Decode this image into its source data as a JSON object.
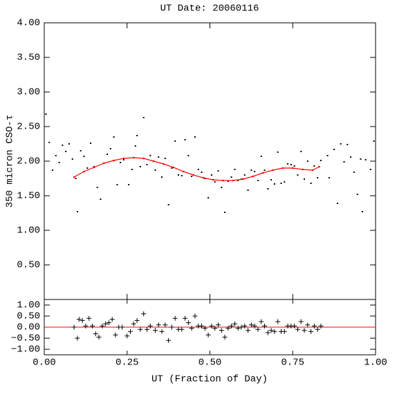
{
  "chart_data": [
    {
      "type": "scatter",
      "title": "UT Date: 20060116",
      "ylabel": "350 micron CSO-τ",
      "xlim": [
        0,
        1
      ],
      "xticks": [
        0,
        0.25,
        0.5,
        0.75,
        1
      ],
      "ylim": [
        0,
        4
      ],
      "yticks": [
        {
          "value": 0.5,
          "label": "0.50"
        },
        {
          "value": 1,
          "label": "1.00"
        },
        {
          "value": 1.5,
          "label": "1.50"
        },
        {
          "value": 2,
          "label": "2.00"
        },
        {
          "value": 2.5,
          "label": "2.50"
        },
        {
          "value": 3,
          "label": "3.00"
        },
        {
          "value": 3.5,
          "label": "3.50"
        },
        {
          "value": 4,
          "label": "4.00"
        }
      ],
      "series": [
        {
          "mode": "points",
          "color": "#000000",
          "x": [
            0.005,
            0.015,
            0.025,
            0.035,
            0.045,
            0.055,
            0.065,
            0.075,
            0.085,
            0.095,
            0.1,
            0.11,
            0.12,
            0.13,
            0.14,
            0.15,
            0.16,
            0.17,
            0.18,
            0.19,
            0.2,
            0.21,
            0.22,
            0.23,
            0.24,
            0.255,
            0.265,
            0.275,
            0.28,
            0.29,
            0.3,
            0.31,
            0.32,
            0.335,
            0.345,
            0.355,
            0.365,
            0.375,
            0.385,
            0.395,
            0.405,
            0.415,
            0.425,
            0.435,
            0.445,
            0.455,
            0.465,
            0.475,
            0.485,
            0.495,
            0.505,
            0.515,
            0.525,
            0.535,
            0.545,
            0.555,
            0.565,
            0.575,
            0.585,
            0.595,
            0.605,
            0.615,
            0.625,
            0.635,
            0.645,
            0.655,
            0.665,
            0.675,
            0.685,
            0.695,
            0.705,
            0.715,
            0.725,
            0.735,
            0.745,
            0.755,
            0.765,
            0.775,
            0.785,
            0.795,
            0.805,
            0.815,
            0.825,
            0.835,
            0.855,
            0.86,
            0.875,
            0.885,
            0.895,
            0.905,
            0.915,
            0.925,
            0.935,
            0.945,
            0.955,
            0.96,
            0.97,
            0.985,
            0.995
          ],
          "values": [
            2.68,
            2.27,
            1.87,
            2.08,
            1.98,
            2.23,
            2.14,
            2.25,
            2.03,
            1.75,
            1.27,
            2.15,
            2.07,
            1.9,
            2.26,
            1.92,
            1.62,
            1.45,
            1.97,
            2.1,
            2.18,
            2.35,
            1.66,
            1.98,
            2.02,
            1.66,
            1.88,
            2.22,
            2.37,
            1.92,
            2.63,
            1.95,
            2.08,
            1.87,
            2.06,
            1.77,
            2.04,
            1.37,
            1.9,
            2.29,
            1.8,
            1.79,
            2.31,
            2.08,
            1.78,
            2.35,
            1.88,
            1.84,
            1.75,
            1.47,
            1.8,
            1.7,
            1.86,
            1.62,
            1.26,
            1.71,
            1.77,
            1.88,
            1.72,
            1.74,
            1.8,
            1.58,
            1.87,
            1.85,
            1.72,
            2.07,
            1.87,
            1.6,
            1.73,
            1.67,
            2.13,
            1.68,
            1.7,
            1.96,
            1.95,
            1.93,
            1.8,
            2.14,
            1.74,
            2.0,
            1.68,
            1.93,
            1.76,
            2.01,
            2.08,
            1.76,
            2.17,
            1.39,
            2.25,
            1.99,
            2.24,
            2.06,
            1.84,
            1.52,
            2.03,
            1.27,
            2.02,
            1.88,
            2.29
          ]
        },
        {
          "mode": "line",
          "color": "#ff0000",
          "x": [
            0.09,
            0.12,
            0.15,
            0.18,
            0.21,
            0.24,
            0.27,
            0.3,
            0.33,
            0.36,
            0.39,
            0.42,
            0.45,
            0.48,
            0.51,
            0.54,
            0.57,
            0.6,
            0.63,
            0.66,
            0.69,
            0.72,
            0.75,
            0.78,
            0.81,
            0.83
          ],
          "values": [
            1.77,
            1.85,
            1.91,
            1.97,
            2.01,
            2.04,
            2.05,
            2.04,
            2.0,
            1.96,
            1.91,
            1.85,
            1.8,
            1.76,
            1.73,
            1.72,
            1.72,
            1.74,
            1.78,
            1.83,
            1.87,
            1.9,
            1.9,
            1.88,
            1.87,
            1.92
          ]
        }
      ]
    },
    {
      "type": "scatter",
      "xlabel": "UT (Fraction of Day)",
      "xlim": [
        0,
        1
      ],
      "xticks": [
        {
          "value": 0,
          "label": "0.00"
        },
        {
          "value": 0.25,
          "label": "0.25"
        },
        {
          "value": 0.5,
          "label": "0.50"
        },
        {
          "value": 0.75,
          "label": "0.75"
        },
        {
          "value": 1,
          "label": "1.00"
        }
      ],
      "ylim": [
        -1.25,
        1.25
      ],
      "yticks": [
        {
          "value": -1,
          "label": "−1.00"
        },
        {
          "value": -0.5,
          "label": "−0.50"
        },
        {
          "value": 0,
          "label": "0.00"
        },
        {
          "value": 0.5,
          "label": "0.50"
        },
        {
          "value": 1,
          "label": "1.00"
        }
      ],
      "hline": 0,
      "hline_color": "#ff0000",
      "series": [
        {
          "mode": "plus",
          "color": "#000000",
          "x": [
            0.09,
            0.1,
            0.105,
            0.115,
            0.125,
            0.135,
            0.145,
            0.155,
            0.165,
            0.175,
            0.185,
            0.195,
            0.205,
            0.215,
            0.225,
            0.235,
            0.25,
            0.26,
            0.27,
            0.28,
            0.29,
            0.3,
            0.31,
            0.32,
            0.335,
            0.345,
            0.355,
            0.365,
            0.375,
            0.385,
            0.395,
            0.405,
            0.415,
            0.425,
            0.435,
            0.445,
            0.455,
            0.465,
            0.475,
            0.485,
            0.495,
            0.505,
            0.515,
            0.525,
            0.535,
            0.545,
            0.555,
            0.565,
            0.575,
            0.585,
            0.595,
            0.605,
            0.615,
            0.625,
            0.635,
            0.645,
            0.655,
            0.665,
            0.675,
            0.685,
            0.695,
            0.705,
            0.715,
            0.725,
            0.735,
            0.745,
            0.755,
            0.765,
            0.775,
            0.785,
            0.795,
            0.805,
            0.815,
            0.825,
            0.835
          ],
          "values": [
            0.0,
            -0.5,
            0.35,
            0.3,
            0.05,
            0.4,
            0.05,
            -0.3,
            -0.45,
            0.05,
            0.15,
            0.2,
            0.35,
            -0.35,
            0.0,
            0.0,
            -0.4,
            -0.2,
            0.15,
            0.3,
            -0.1,
            0.6,
            -0.1,
            0.05,
            -0.15,
            0.1,
            -0.2,
            0.1,
            -0.6,
            0.0,
            0.4,
            -0.1,
            -0.1,
            0.4,
            0.2,
            -0.05,
            0.5,
            0.05,
            0.05,
            -0.05,
            -0.35,
            0.05,
            -0.05,
            0.1,
            -0.15,
            -0.45,
            -0.05,
            0.05,
            0.15,
            -0.05,
            0.0,
            0.05,
            -0.15,
            0.1,
            0.05,
            -0.1,
            0.25,
            0.05,
            -0.25,
            -0.15,
            -0.2,
            0.25,
            -0.2,
            -0.2,
            0.05,
            0.05,
            0.05,
            -0.1,
            0.25,
            -0.15,
            0.1,
            -0.2,
            0.05,
            -0.1,
            0.05
          ]
        }
      ]
    }
  ]
}
